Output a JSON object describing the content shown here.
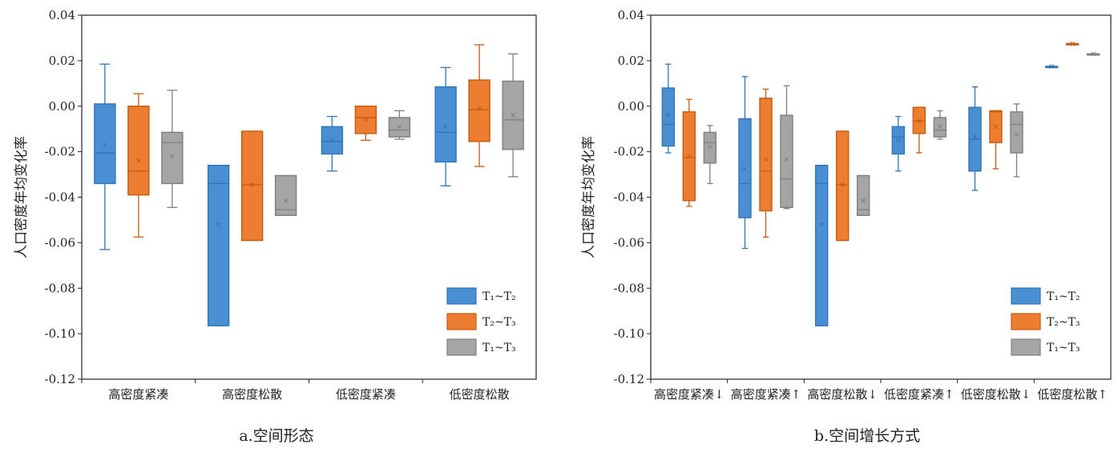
{
  "colors": {
    "T1T2": "#4a8fd4",
    "T2T3": "#ed7d31",
    "T1T3": "#a5a5a5",
    "T1T2_edge": "#2e75b6",
    "T2T3_edge": "#c55a11",
    "T1T3_edge": "#7f7f7f"
  },
  "chart_data": [
    {
      "type": "box",
      "caption": "a.空间形态",
      "ylabel": "人口密度年均变化率",
      "ylim": [
        -0.12,
        0.04
      ],
      "yticks": [
        "0.04",
        "0.02",
        "0.00",
        "-0.02",
        "-0.04",
        "-0.06",
        "-0.08",
        "-0.10",
        "-0.12"
      ],
      "categories": [
        "高密度紧凑",
        "高密度松散",
        "低密度紧凑",
        "低密度松散"
      ],
      "legend": [
        {
          "key": "T1T2",
          "label": "T₁~T₂"
        },
        {
          "key": "T2T3",
          "label": "T₂~T₃"
        },
        {
          "key": "T1T3",
          "label": "T₁~T₃"
        }
      ],
      "series": [
        {
          "key": "T1T2",
          "stats": [
            {
              "min": -0.063,
              "q1": -0.034,
              "median": -0.0205,
              "q3": 0.001,
              "max": 0.0185,
              "mean": -0.017
            },
            {
              "min": -0.0965,
              "q1": -0.0965,
              "median": -0.034,
              "q3": -0.026,
              "max": -0.026,
              "mean": -0.052
            },
            {
              "min": -0.0285,
              "q1": -0.021,
              "median": -0.0155,
              "q3": -0.009,
              "max": -0.0045,
              "mean": -0.015
            },
            {
              "min": -0.035,
              "q1": -0.0245,
              "median": -0.0115,
              "q3": 0.0085,
              "max": 0.017,
              "mean": -0.009
            }
          ]
        },
        {
          "key": "T2T3",
          "stats": [
            {
              "min": -0.0575,
              "q1": -0.039,
              "median": -0.0285,
              "q3": 0.0,
              "max": 0.0055,
              "mean": -0.024
            },
            {
              "min": -0.059,
              "q1": -0.059,
              "median": -0.0345,
              "q3": -0.011,
              "max": -0.011,
              "mean": -0.0345
            },
            {
              "min": -0.015,
              "q1": -0.012,
              "median": -0.005,
              "q3": 0.0,
              "max": 0.0,
              "mean": -0.006
            },
            {
              "min": -0.0265,
              "q1": -0.0155,
              "median": -0.0015,
              "q3": 0.0115,
              "max": 0.027,
              "mean": -0.001
            }
          ]
        },
        {
          "key": "T1T3",
          "stats": [
            {
              "min": -0.0445,
              "q1": -0.034,
              "median": -0.016,
              "q3": -0.0115,
              "max": 0.007,
              "mean": -0.022
            },
            {
              "min": -0.048,
              "q1": -0.048,
              "median": -0.0455,
              "q3": -0.0305,
              "max": -0.0305,
              "mean": -0.0415
            },
            {
              "min": -0.0145,
              "q1": -0.0135,
              "median": -0.0105,
              "q3": -0.005,
              "max": -0.002,
              "mean": -0.009
            },
            {
              "min": -0.031,
              "q1": -0.019,
              "median": -0.006,
              "q3": 0.011,
              "max": 0.023,
              "mean": -0.004
            }
          ]
        }
      ]
    },
    {
      "type": "box",
      "caption": "b.空间增长方式",
      "ylabel": "人口密度年均变化率",
      "ylim": [
        -0.12,
        0.04
      ],
      "yticks": [
        "0.04",
        "0.02",
        "0.00",
        "-0.02",
        "-0.04",
        "-0.06",
        "-0.08",
        "-0.10",
        "-0.12"
      ],
      "categories": [
        "高密度紧凑↓",
        "高密度紧凑↑",
        "高密度松散↓",
        "低密度紧凑↑",
        "低密度松散↓",
        "低密度松散↑"
      ],
      "legend": [
        {
          "key": "T1T2",
          "label": "T₁~T₂"
        },
        {
          "key": "T2T3",
          "label": "T₂~T₃"
        },
        {
          "key": "T1T3",
          "label": "T₁~T₃"
        }
      ],
      "series": [
        {
          "key": "T1T2",
          "stats": [
            {
              "min": -0.0205,
              "q1": -0.0175,
              "median": -0.008,
              "q3": 0.008,
              "max": 0.0185,
              "mean": -0.004
            },
            {
              "min": -0.0625,
              "q1": -0.049,
              "median": -0.034,
              "q3": -0.0055,
              "max": 0.013,
              "mean": -0.0275
            },
            {
              "min": -0.0965,
              "q1": -0.0965,
              "median": -0.034,
              "q3": -0.026,
              "max": -0.026,
              "mean": -0.052
            },
            {
              "min": -0.0285,
              "q1": -0.021,
              "median": -0.0135,
              "q3": -0.009,
              "max": -0.0045,
              "mean": -0.015
            },
            {
              "min": -0.037,
              "q1": -0.0285,
              "median": -0.0145,
              "q3": -0.0005,
              "max": 0.0085,
              "mean": -0.0135
            },
            {
              "min": 0.0175,
              "q1": 0.0175,
              "median": 0.0175,
              "q3": 0.0175,
              "max": 0.0175,
              "mean": 0.0175
            }
          ]
        },
        {
          "key": "T2T3",
          "stats": [
            {
              "min": -0.044,
              "q1": -0.0415,
              "median": -0.0225,
              "q3": -0.0025,
              "max": 0.003,
              "mean": -0.022
            },
            {
              "min": -0.0575,
              "q1": -0.046,
              "median": -0.0285,
              "q3": 0.0035,
              "max": 0.0075,
              "mean": -0.0235
            },
            {
              "min": -0.059,
              "q1": -0.059,
              "median": -0.0345,
              "q3": -0.011,
              "max": -0.011,
              "mean": -0.0345
            },
            {
              "min": -0.0205,
              "q1": -0.012,
              "median": -0.0065,
              "q3": -0.0005,
              "max": -0.0005,
              "mean": -0.0065
            },
            {
              "min": -0.0275,
              "q1": -0.016,
              "median": -0.0025,
              "q3": -0.002,
              "max": -0.002,
              "mean": -0.009
            },
            {
              "min": 0.0275,
              "q1": 0.0275,
              "median": 0.0275,
              "q3": 0.0275,
              "max": 0.0275,
              "mean": 0.0275
            }
          ]
        },
        {
          "key": "T1T3",
          "stats": [
            {
              "min": -0.034,
              "q1": -0.025,
              "median": -0.016,
              "q3": -0.0115,
              "max": -0.0085,
              "mean": -0.018
            },
            {
              "min": -0.045,
              "q1": -0.0445,
              "median": -0.032,
              "q3": -0.004,
              "max": 0.009,
              "mean": -0.0235
            },
            {
              "min": -0.048,
              "q1": -0.048,
              "median": -0.0455,
              "q3": -0.0305,
              "max": -0.0305,
              "mean": -0.0415
            },
            {
              "min": -0.0145,
              "q1": -0.0135,
              "median": -0.0105,
              "q3": -0.005,
              "max": -0.002,
              "mean": -0.009
            },
            {
              "min": -0.031,
              "q1": -0.0205,
              "median": -0.008,
              "q3": -0.0025,
              "max": 0.001,
              "mean": -0.0125
            },
            {
              "min": 0.023,
              "q1": 0.023,
              "median": 0.023,
              "q3": 0.023,
              "max": 0.023,
              "mean": 0.023
            }
          ]
        }
      ]
    }
  ]
}
